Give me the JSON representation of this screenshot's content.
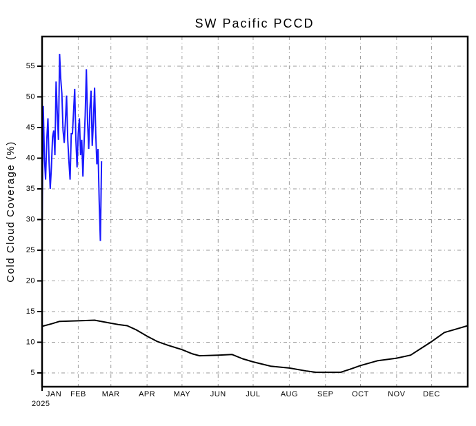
{
  "page": {
    "background": "#ffffff"
  },
  "chart_data": {
    "type": "line",
    "title": "SW Pacific PCCD",
    "xlabel": "",
    "ylabel": "Cold Cloud Coverage (%)",
    "x_tick_labels": [
      "JAN",
      "FEB",
      "MAR",
      "APR",
      "MAY",
      "JUN",
      "JUL",
      "AUG",
      "SEP",
      "OCT",
      "NOV",
      "DEC"
    ],
    "x_start_year_label": "2025",
    "y_ticks": [
      5,
      10,
      15,
      20,
      25,
      30,
      35,
      40,
      45,
      50,
      55
    ],
    "ylim": [
      2.7,
      59.8
    ],
    "grid": "dash-dot gray, vertical at month starts and horizontal at each 5%",
    "legend": "none",
    "month_start_doy": [
      0,
      31,
      59,
      90,
      120,
      151,
      181,
      212,
      243,
      273,
      304,
      334
    ],
    "days_in_year": 365,
    "colors": {
      "daily_series": "#1a1aff",
      "climatology_series": "#000000",
      "grid": "#9a9a9a",
      "frame": "#000000"
    },
    "series": [
      {
        "name": "daily PCCD 2025 (Jan 1 - Feb 21)",
        "color": "#1a1aff",
        "start_doy": 0,
        "step_days": 1,
        "values": [
          28,
          48.5,
          40,
          36.5,
          43,
          46.5,
          39.5,
          35,
          38.5,
          43.5,
          44.5,
          40.5,
          52.5,
          47.5,
          43,
          57,
          53,
          50.5,
          44.5,
          42.5,
          46,
          50.2,
          43,
          39.5,
          36.5,
          44,
          44,
          47.5,
          51.3,
          43,
          38.5,
          44,
          46.5,
          40.5,
          43,
          37,
          42.5,
          47,
          54.5,
          46,
          41.5,
          48,
          51,
          42,
          46,
          51.5,
          44,
          39,
          41.5,
          33,
          26.5,
          39.5
        ]
      },
      {
        "name": "climatology (annual cycle)",
        "color": "#000000",
        "points_doy_value": [
          [
            0,
            12.6
          ],
          [
            8,
            13.0
          ],
          [
            15,
            13.4
          ],
          [
            31,
            13.5
          ],
          [
            45,
            13.6
          ],
          [
            59,
            13.1
          ],
          [
            65,
            12.9
          ],
          [
            73,
            12.7
          ],
          [
            81,
            12.0
          ],
          [
            90,
            11.0
          ],
          [
            99,
            10.1
          ],
          [
            108,
            9.5
          ],
          [
            120,
            8.8
          ],
          [
            129,
            8.1
          ],
          [
            135,
            7.8
          ],
          [
            151,
            7.9
          ],
          [
            163,
            8.0
          ],
          [
            172,
            7.3
          ],
          [
            181,
            6.8
          ],
          [
            196,
            6.1
          ],
          [
            212,
            5.8
          ],
          [
            227,
            5.3
          ],
          [
            235,
            5.1
          ],
          [
            243,
            5.1
          ],
          [
            256,
            5.1
          ],
          [
            264,
            5.6
          ],
          [
            273,
            6.2
          ],
          [
            288,
            7.0
          ],
          [
            304,
            7.4
          ],
          [
            316,
            7.9
          ],
          [
            325,
            9.0
          ],
          [
            334,
            10.1
          ],
          [
            345,
            11.6
          ],
          [
            356,
            12.2
          ],
          [
            365,
            12.7
          ]
        ]
      }
    ]
  }
}
